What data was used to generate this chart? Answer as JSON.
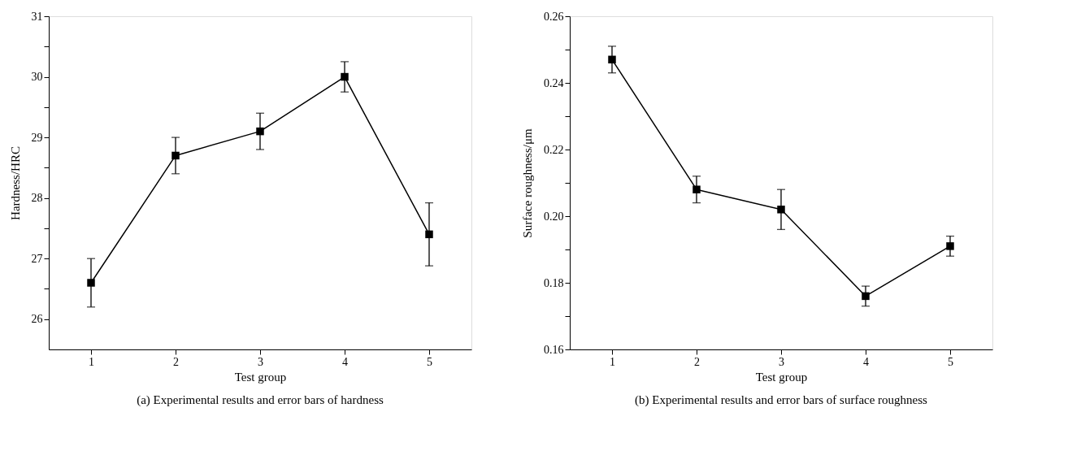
{
  "chart_data": [
    {
      "type": "line",
      "xlabel": "Test group",
      "ylabel": "Hardness/HRC",
      "x": [
        1,
        2,
        3,
        4,
        5
      ],
      "series": [
        {
          "color": "#000000",
          "values": [
            26.6,
            28.7,
            29.1,
            30.0,
            27.4
          ],
          "errors": [
            0.4,
            0.3,
            0.3,
            0.25,
            0.52
          ]
        }
      ],
      "xlim": [
        0.5,
        5.5
      ],
      "xticks": [
        1,
        2,
        3,
        4,
        5
      ],
      "ylim": [
        25.5,
        31
      ],
      "yticks": [
        26,
        {
          "value": 26.5,
          "label": null
        },
        27,
        {
          "value": 27.5,
          "label": null
        },
        28,
        {
          "value": 28.5,
          "label": null
        },
        29,
        {
          "value": 29.5,
          "label": null
        },
        30,
        {
          "value": 30.5,
          "label": null
        },
        31
      ],
      "marker": "square",
      "line_style": "solid",
      "grid": false,
      "annotations": [
        "(a) Experimental results and error bars of hardness"
      ]
    },
    {
      "type": "line",
      "xlabel": "Test group",
      "ylabel": "Surface roughness/μm",
      "x": [
        1,
        2,
        3,
        4,
        5
      ],
      "series": [
        {
          "color": "#000000",
          "values": [
            0.247,
            0.208,
            0.202,
            0.176,
            0.191
          ],
          "errors": [
            0.004,
            0.004,
            0.006,
            0.003,
            0.003
          ]
        }
      ],
      "xlim": [
        0.5,
        5.5
      ],
      "xticks": [
        1,
        2,
        3,
        4,
        5
      ],
      "ylim": [
        0.16,
        0.26
      ],
      "yticks": [
        {
          "value": 0.16,
          "label": "0.16"
        },
        {
          "value": 0.17,
          "label": null
        },
        {
          "value": 0.18,
          "label": "0.18"
        },
        {
          "value": 0.19,
          "label": null
        },
        {
          "value": 0.2,
          "label": "0.20"
        },
        {
          "value": 0.21,
          "label": null
        },
        {
          "value": 0.22,
          "label": "0.22"
        },
        {
          "value": 0.23,
          "label": null
        },
        {
          "value": 0.24,
          "label": "0.24"
        },
        {
          "value": 0.25,
          "label": null
        },
        {
          "value": 0.26,
          "label": "0.26"
        }
      ],
      "marker": "square",
      "line_style": "solid",
      "grid": false,
      "annotations": [
        "(b) Experimental results and error bars of surface roughness"
      ]
    }
  ]
}
